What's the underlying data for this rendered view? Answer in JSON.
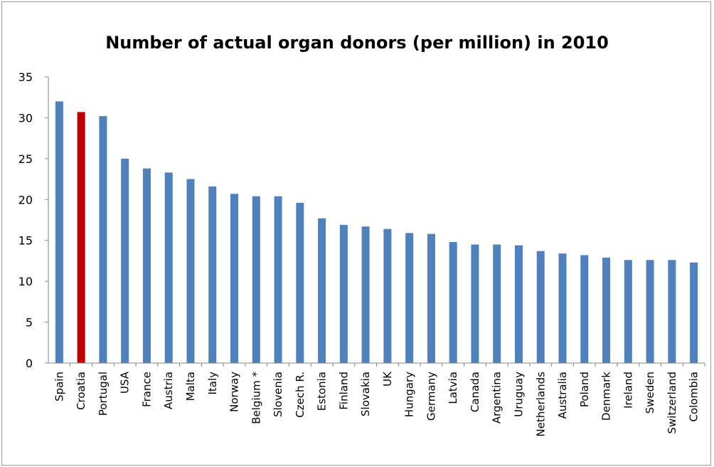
{
  "chart_data": {
    "type": "bar",
    "title": "Number of actual organ donors (per million) in 2010",
    "xlabel": "",
    "ylabel": "",
    "ylim": [
      0,
      35
    ],
    "yticks": [
      0,
      5,
      10,
      15,
      20,
      25,
      30,
      35
    ],
    "grid": false,
    "legend": "none",
    "categories": [
      "Spain",
      "Croatia",
      "Portugal",
      "USA",
      "France",
      "Austria",
      "Malta",
      "Italy",
      "Norway",
      "Belgium *",
      "Slovenia",
      "Czech R.",
      "Estonia",
      "Finland",
      "Slovakia",
      "UK",
      "Hungary",
      "Germany",
      "Latvia",
      "Canada",
      "Argentina",
      "Uruguay",
      "Netherlands",
      "Australia",
      "Poland",
      "Denmark",
      "Ireland",
      "Sweden",
      "Switzerland",
      "Colombia"
    ],
    "values": [
      32.0,
      30.7,
      30.2,
      25.0,
      23.8,
      23.3,
      22.5,
      21.6,
      20.7,
      20.4,
      20.4,
      19.6,
      17.7,
      16.9,
      16.7,
      16.4,
      15.9,
      15.8,
      14.8,
      14.5,
      14.5,
      14.4,
      13.7,
      13.4,
      13.2,
      12.9,
      12.6,
      12.6,
      12.6,
      12.3
    ],
    "colors": {
      "default": "#4f81bd",
      "highlight": "#c00000",
      "highlight_category": "Croatia"
    }
  }
}
